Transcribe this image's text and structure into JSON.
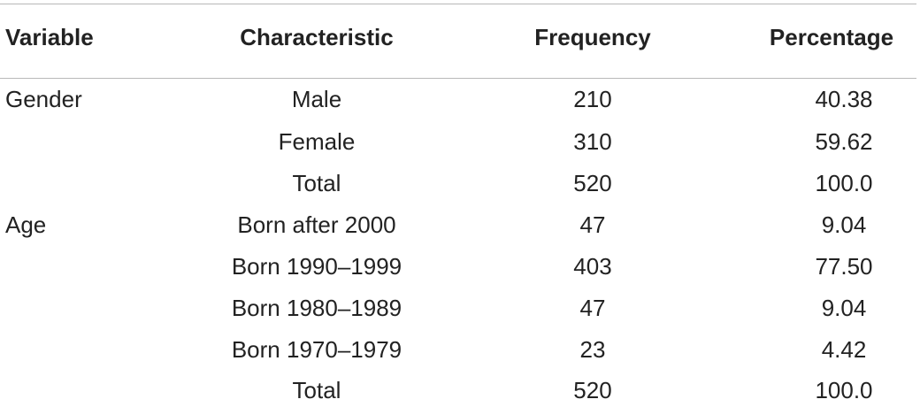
{
  "table": {
    "headers": [
      "Variable",
      "Characteristic",
      "Frequency",
      "Percentage"
    ],
    "rows": [
      {
        "variable": "Gender",
        "characteristic": "Male",
        "frequency": "210",
        "percentage": "40.38"
      },
      {
        "variable": "",
        "characteristic": "Female",
        "frequency": "310",
        "percentage": "59.62"
      },
      {
        "variable": "",
        "characteristic": "Total",
        "frequency": "520",
        "percentage": "100.0"
      },
      {
        "variable": "Age",
        "characteristic": "Born after 2000",
        "frequency": "47",
        "percentage": "9.04"
      },
      {
        "variable": "",
        "characteristic": "Born 1990–1999",
        "frequency": "403",
        "percentage": "77.50"
      },
      {
        "variable": "",
        "characteristic": "Born 1980–1989",
        "frequency": "47",
        "percentage": "9.04"
      },
      {
        "variable": "",
        "characteristic": "Born 1970–1979",
        "frequency": "23",
        "percentage": "4.42"
      },
      {
        "variable": "",
        "characteristic": "Total",
        "frequency": "520",
        "percentage": "100.0"
      }
    ]
  }
}
